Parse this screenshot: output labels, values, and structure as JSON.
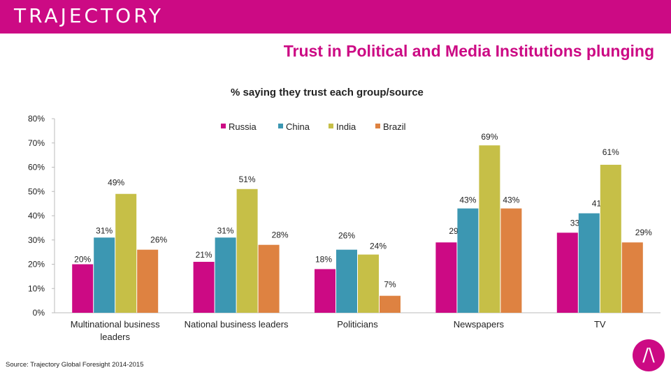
{
  "header": {
    "brand": "TRAJECTORY",
    "title": "Trust in Political and Media Institutions plunging",
    "subtitle": "% saying they trust each group/source",
    "source": "Source: Trajectory Global Foresight 2014-2015",
    "logo_glyph": "/\\"
  },
  "colors": {
    "accent": "#cc0a84",
    "russia": "#cc0a84",
    "china": "#3c97b2",
    "india": "#c6bf47",
    "brazil": "#de8241"
  },
  "chart_data": {
    "type": "bar",
    "title": "% saying they trust each group/source",
    "xlabel": "",
    "ylabel": "",
    "ylim": [
      0,
      80
    ],
    "yticks": [
      "0%",
      "10%",
      "20%",
      "30%",
      "40%",
      "50%",
      "60%",
      "70%",
      "80%"
    ],
    "legend_position": "top",
    "categories": [
      [
        "Multinational business",
        "leaders"
      ],
      [
        "National business leaders"
      ],
      [
        "Politicians"
      ],
      [
        "Newspapers"
      ],
      [
        "TV"
      ]
    ],
    "series": [
      {
        "name": "Russia",
        "color": "#cc0a84",
        "values": [
          20,
          21,
          18,
          29,
          33
        ],
        "labels": [
          "20%",
          "21%",
          "18%",
          "29%",
          "33%"
        ]
      },
      {
        "name": "China",
        "color": "#3c97b2",
        "values": [
          31,
          31,
          26,
          43,
          41
        ],
        "labels": [
          "31%",
          "31%",
          "26%",
          "43%",
          "41%"
        ]
      },
      {
        "name": "India",
        "color": "#c6bf47",
        "values": [
          49,
          51,
          24,
          69,
          61
        ],
        "labels": [
          "49%",
          "51%",
          "24%",
          "69%",
          "61%"
        ]
      },
      {
        "name": "Brazil",
        "color": "#de8241",
        "values": [
          26,
          28,
          7,
          43,
          29
        ],
        "labels": [
          "26%",
          "28%",
          "7%",
          "43%",
          "29%"
        ]
      }
    ]
  }
}
